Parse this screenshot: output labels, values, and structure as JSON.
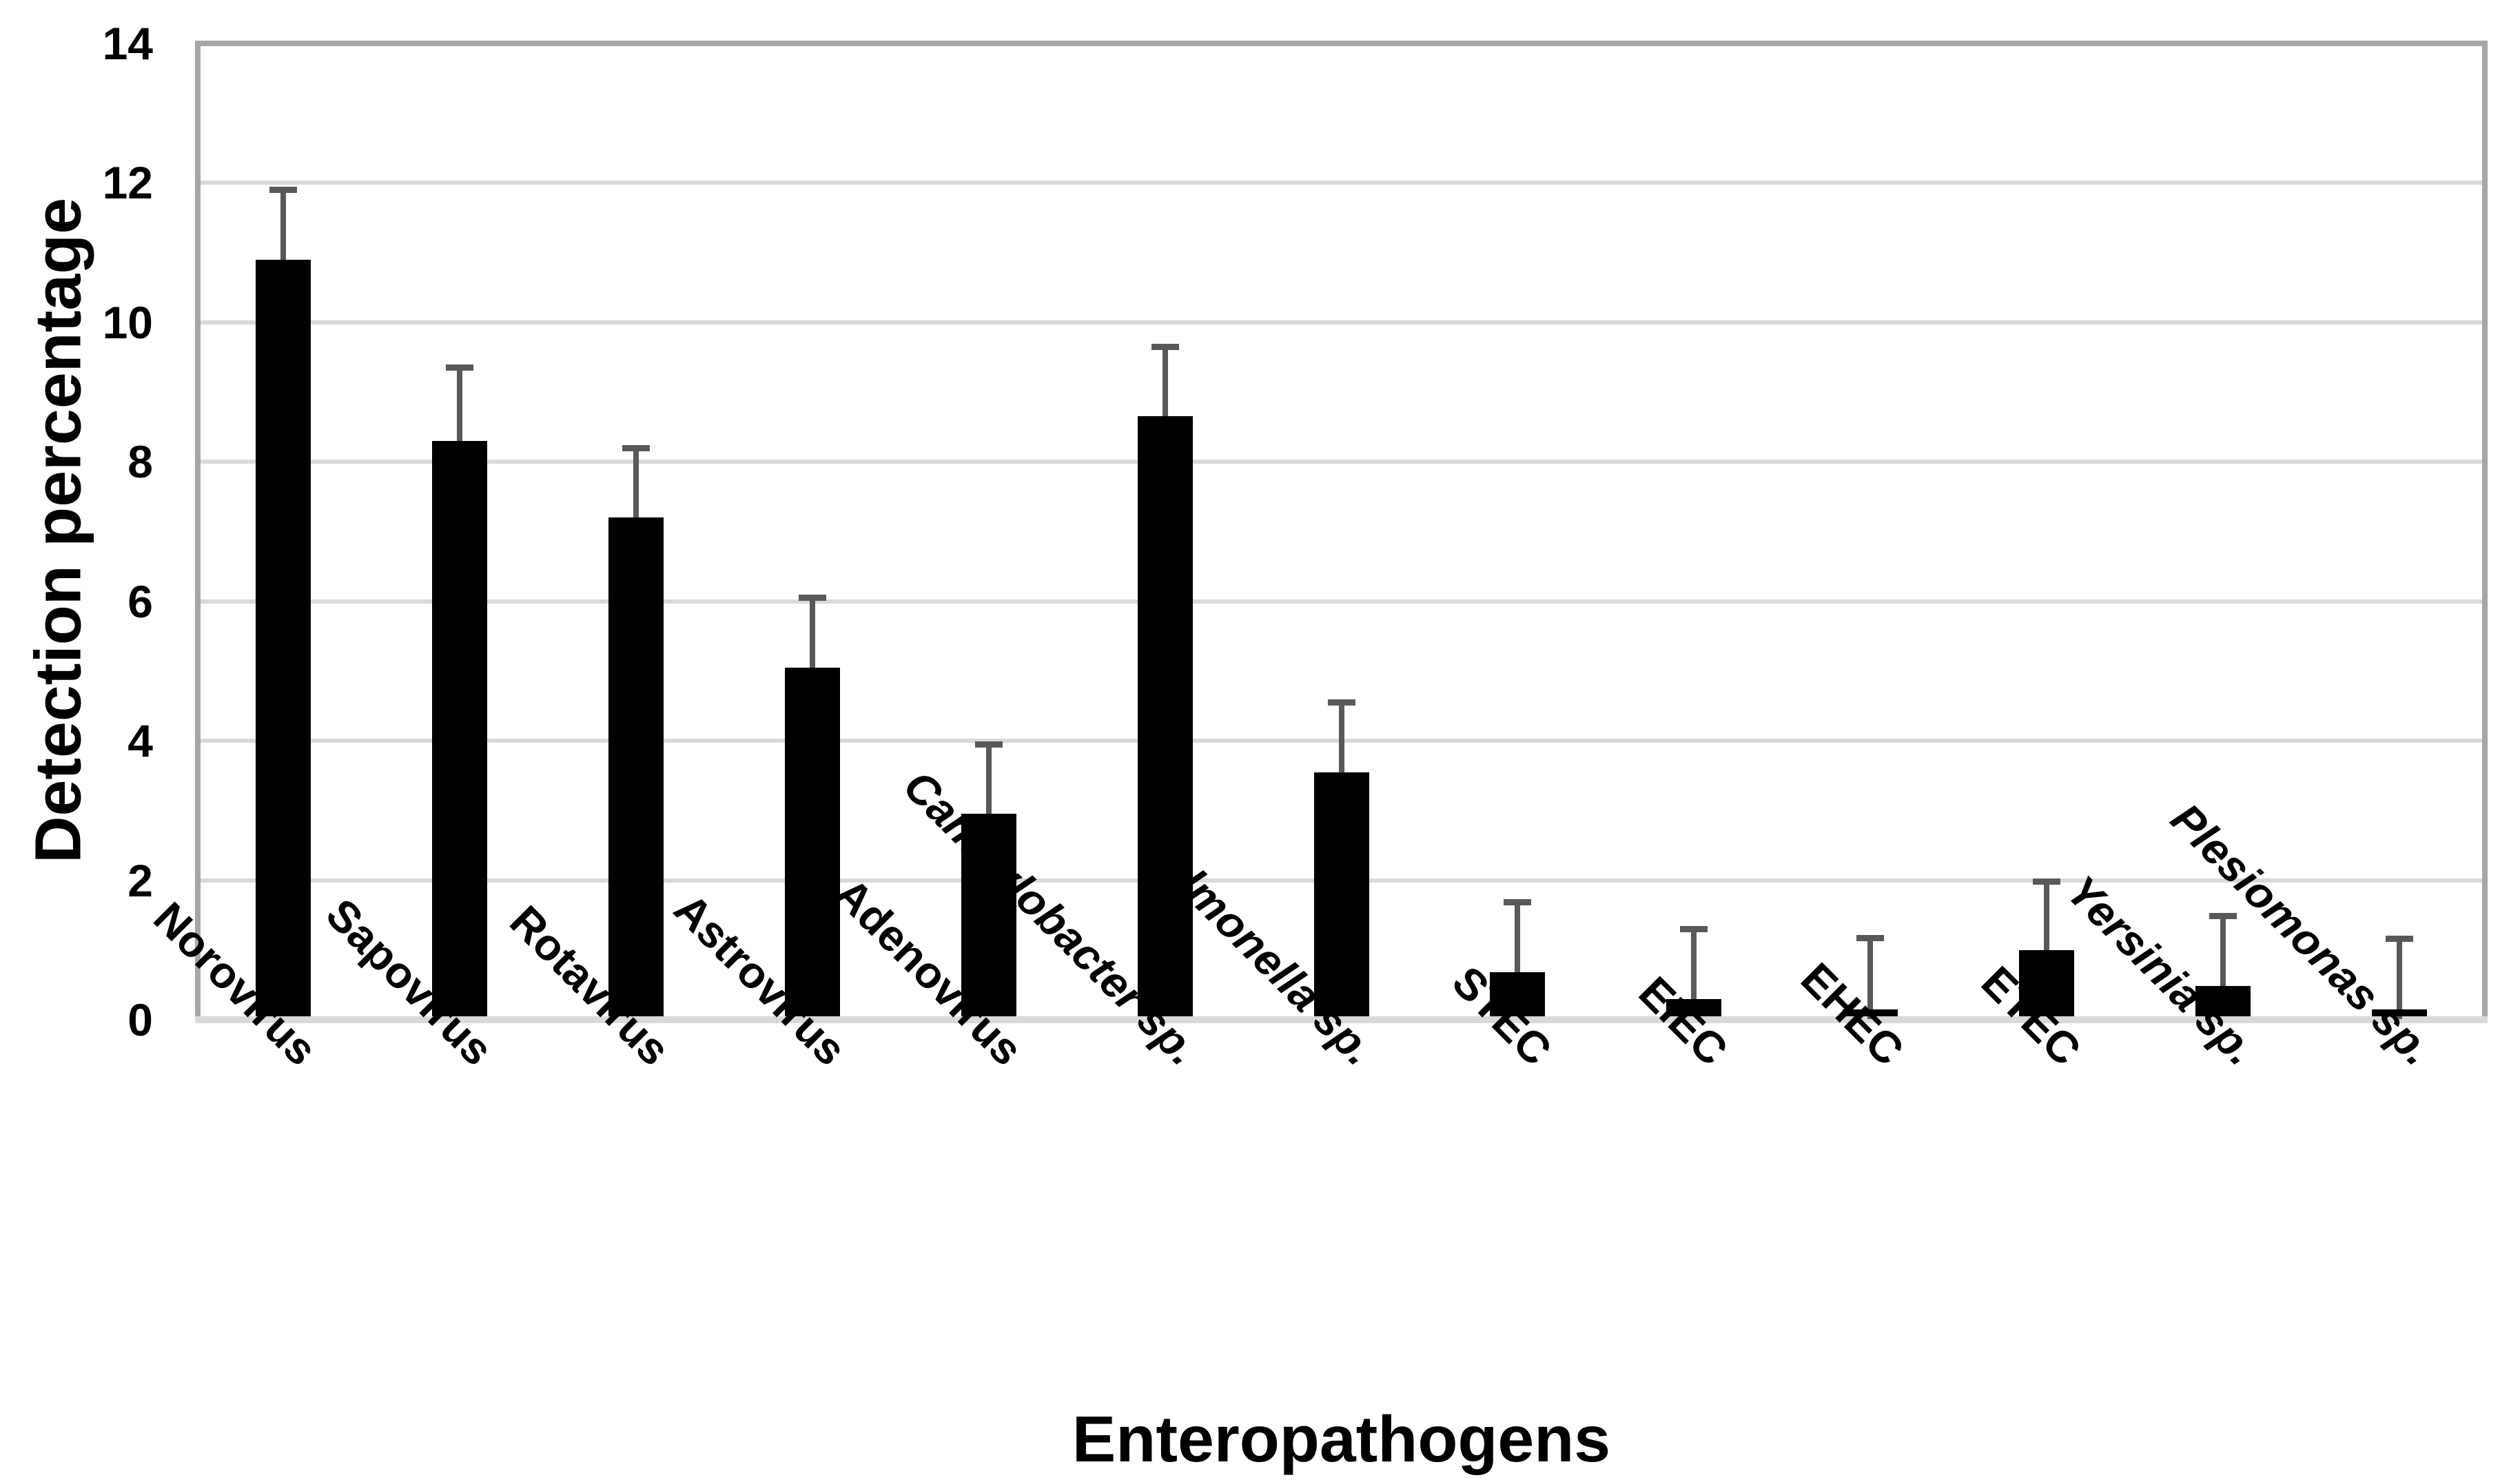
{
  "chart_data": {
    "type": "bar",
    "title": "",
    "xlabel": "Enteropathogens",
    "ylabel": "Detection percentage",
    "ylim": [
      0,
      14
    ],
    "yticks": [
      0,
      2,
      4,
      6,
      8,
      10,
      12,
      14
    ],
    "grid": "horizontal-light-gray",
    "legend": "none",
    "bar_orientation": "vertical",
    "error_bars": "upper-only",
    "categories": [
      {
        "label": "Norovirus",
        "italic": false
      },
      {
        "label": "Sapovirus",
        "italic": false
      },
      {
        "label": "Rotavirus",
        "italic": false
      },
      {
        "label": "Astrovirus",
        "italic": false
      },
      {
        "label": "Adenovirus",
        "italic": false
      },
      {
        "label": "Campylobacter sp.",
        "italic": true
      },
      {
        "label": "Salmonella sp.",
        "italic": true
      },
      {
        "label": "STEC",
        "italic": false
      },
      {
        "label": "EIEC",
        "italic": false
      },
      {
        "label": "EHEC",
        "italic": false
      },
      {
        "label": "ETEC",
        "italic": false
      },
      {
        "label": "Yersinia sp.",
        "italic": true
      },
      {
        "label": "Plesiomonas sp.",
        "italic": true
      }
    ],
    "values": [
      10.9,
      8.3,
      7.2,
      5.05,
      2.95,
      8.65,
      3.55,
      0.68,
      0.3,
      0.15,
      1.0,
      0.48,
      0.15
    ],
    "error_upper": [
      11.9,
      9.35,
      8.2,
      6.05,
      3.95,
      9.65,
      4.55,
      1.68,
      1.3,
      1.17,
      1.98,
      1.49,
      1.16
    ],
    "colors": {
      "bar": "#000000",
      "error_bar": "#595959",
      "gridline": "#D9D9D9",
      "axis_border": "#A6A6A6",
      "baseline": "#D9D9D9",
      "text": "#000000",
      "background": "#FFFFFF"
    }
  }
}
